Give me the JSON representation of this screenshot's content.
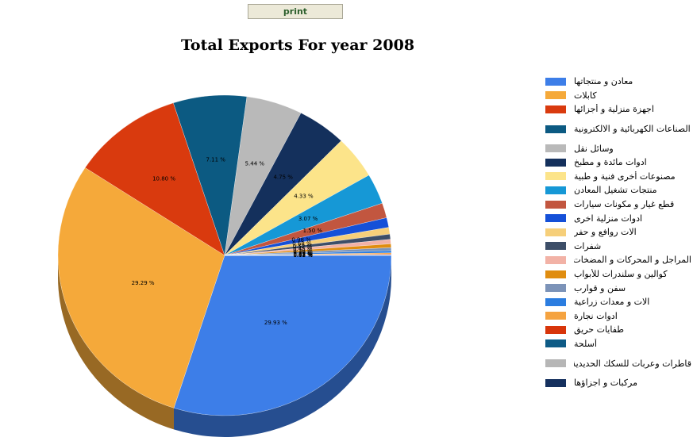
{
  "toolbar": {
    "print_label": "print"
  },
  "chart_data": {
    "type": "pie",
    "title": "Total Exports For year 2008",
    "slices": [
      {
        "name": "معادن و منتجاتها",
        "value": 29.93,
        "label": "29.93 %",
        "color": "#3d7ee8"
      },
      {
        "name": "كابلات",
        "value": 29.29,
        "label": "29.29 %",
        "color": "#f5a93a"
      },
      {
        "name": "اجهزة منزلية و أجزائها",
        "value": 10.8,
        "label": "10.80 %",
        "color": "#d93a0e"
      },
      {
        "name": "الصناعات الكهربائية و الالكترونية",
        "value": 7.11,
        "label": "7.11 %",
        "color": "#0c5a82"
      },
      {
        "name": "وسائل نقل",
        "value": 5.44,
        "label": "5.44 %",
        "color": "#b9b9b9"
      },
      {
        "name": "ادوات مائدة و مطبخ",
        "value": 4.75,
        "label": "4.75 %",
        "color": "#14305c"
      },
      {
        "name": "مصنوعات أخرى فنية و طبية",
        "value": 4.33,
        "label": "4.33 %",
        "color": "#fce48a"
      },
      {
        "name": "منتجات تشغيل المعادن",
        "value": 3.07,
        "label": "3.07 %",
        "color": "#1698d6"
      },
      {
        "name": "قطع غيار و مكونات سيارات",
        "value": 1.5,
        "label": "1.50 %",
        "color": "#c2563f"
      },
      {
        "name": "ادوات منزلية اخرى",
        "value": 0.98,
        "label": "0.98 %",
        "color": "#1550d8"
      },
      {
        "name": "الات روافع و حفر",
        "value": 0.68,
        "label": "0.68 %",
        "color": "#f6cf7a"
      },
      {
        "name": "شفرات",
        "value": 0.52,
        "label": "0.52 %",
        "color": "#3d4e68"
      },
      {
        "name": "المراجل و المحركات و المضخات",
        "value": 0.45,
        "label": "0.45 %",
        "color": "#f2b2a6"
      },
      {
        "name": "كوالين و سلندرات للأبواب",
        "value": 0.38,
        "label": "0.38 %",
        "color": "#e08d10"
      },
      {
        "name": "سفن و قوارب",
        "value": 0.3,
        "label": "0.30 %",
        "color": "#7c93b8"
      },
      {
        "name": "الات و معدات زراعية",
        "value": 0.22,
        "label": "0.22 %",
        "color": "#2b7de0"
      },
      {
        "name": "ادوات نجارة",
        "value": 0.12,
        "label": "0.12 %",
        "color": "#f5a340"
      },
      {
        "name": "طفايات حريق",
        "value": 0.07,
        "label": "0.07 %",
        "color": "#d8350a"
      },
      {
        "name": "أسلحة",
        "value": 0.03,
        "label": "0.03 %",
        "color": "#0e5b86"
      },
      {
        "name": "قاطرات وعربات للسكك الحديدية",
        "value": 0.02,
        "label": "0.02 %",
        "color": "#b6b6b6"
      },
      {
        "name": "مركبات و اجزاؤها",
        "value": 0.01,
        "label": "0.01 %",
        "color": "#15305e"
      }
    ],
    "legend_position": "right",
    "depth_3d": true
  }
}
